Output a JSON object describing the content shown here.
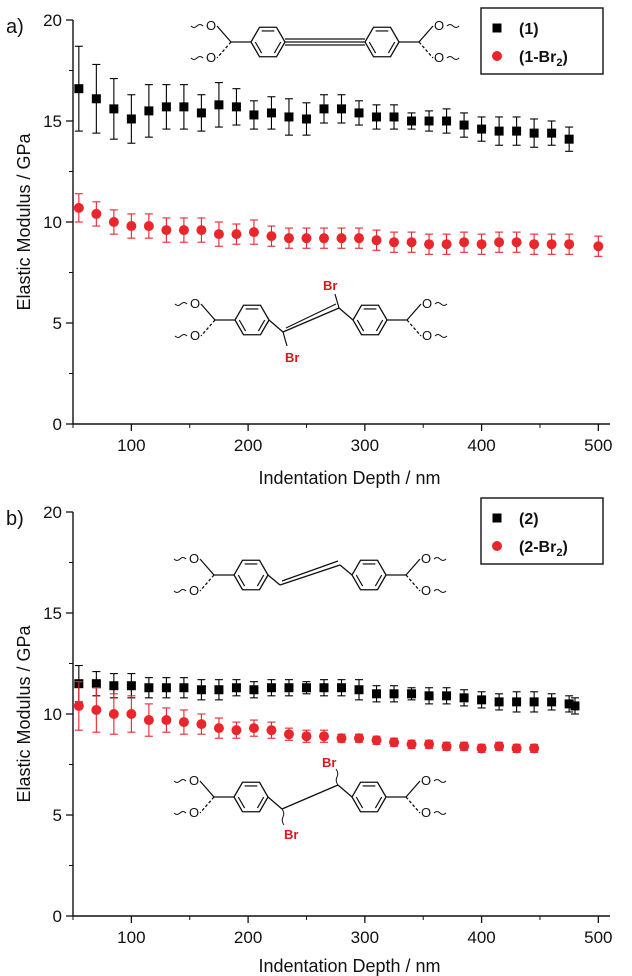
{
  "chart_data": [
    {
      "type": "scatter",
      "panel_label": "a)",
      "xlabel": "Indentation Depth / nm",
      "ylabel": "Elastic Modulus / GPa",
      "xlim": [
        50,
        510
      ],
      "ylim": [
        0,
        20
      ],
      "xticks": [
        100,
        200,
        300,
        400,
        500
      ],
      "yticks": [
        0,
        5,
        10,
        15,
        20
      ],
      "legend": {
        "placement": "top-right"
      },
      "series": [
        {
          "name": "(1)",
          "marker": "square",
          "color": "#000000",
          "x": [
            55,
            70,
            85,
            100,
            115,
            130,
            145,
            160,
            175,
            190,
            205,
            220,
            235,
            250,
            265,
            280,
            295,
            310,
            325,
            340,
            355,
            370,
            385,
            400,
            415,
            430,
            445,
            460,
            475
          ],
          "y": [
            16.6,
            16.1,
            15.6,
            15.1,
            15.5,
            15.7,
            15.7,
            15.4,
            15.8,
            15.7,
            15.3,
            15.4,
            15.2,
            15.1,
            15.6,
            15.6,
            15.4,
            15.2,
            15.2,
            15.0,
            15.0,
            15.0,
            14.8,
            14.6,
            14.5,
            14.5,
            14.4,
            14.4,
            14.1
          ],
          "err": [
            2.1,
            1.7,
            1.5,
            1.2,
            1.3,
            1.1,
            1.1,
            0.9,
            1.1,
            0.9,
            0.7,
            0.8,
            0.9,
            0.8,
            0.7,
            0.7,
            0.6,
            0.6,
            0.6,
            0.4,
            0.5,
            0.6,
            0.6,
            0.6,
            0.7,
            0.7,
            0.7,
            0.6,
            0.6
          ]
        },
        {
          "name_main": "(1-Br",
          "name_sub": "2",
          "name_end": ")",
          "marker": "circle",
          "color": "#e8262b",
          "x": [
            55,
            70,
            85,
            100,
            115,
            130,
            145,
            160,
            175,
            190,
            205,
            220,
            235,
            250,
            265,
            280,
            295,
            310,
            325,
            340,
            355,
            370,
            385,
            400,
            415,
            430,
            445,
            460,
            475,
            500
          ],
          "y": [
            10.7,
            10.4,
            10.0,
            9.8,
            9.8,
            9.6,
            9.6,
            9.6,
            9.4,
            9.4,
            9.5,
            9.3,
            9.2,
            9.2,
            9.2,
            9.2,
            9.2,
            9.1,
            9.0,
            9.0,
            8.9,
            8.9,
            9.0,
            8.9,
            9.0,
            9.0,
            8.9,
            8.9,
            8.9,
            8.8
          ],
          "err": [
            0.7,
            0.6,
            0.6,
            0.6,
            0.6,
            0.6,
            0.6,
            0.6,
            0.6,
            0.5,
            0.6,
            0.5,
            0.5,
            0.5,
            0.5,
            0.5,
            0.5,
            0.5,
            0.5,
            0.5,
            0.5,
            0.5,
            0.5,
            0.5,
            0.5,
            0.5,
            0.5,
            0.5,
            0.5,
            0.5
          ]
        }
      ],
      "molecules": {
        "top": {
          "labels": [
            "O",
            "O",
            "O",
            "O"
          ]
        },
        "bottom": {
          "labels": [
            "O",
            "O",
            "O",
            "O"
          ],
          "br": [
            "Br",
            "Br"
          ]
        }
      }
    },
    {
      "type": "scatter",
      "panel_label": "b)",
      "xlabel": "Indentation Depth / nm",
      "ylabel": "Elastic Modulus / GPa",
      "xlim": [
        50,
        510
      ],
      "ylim": [
        0,
        20
      ],
      "xticks": [
        100,
        200,
        300,
        400,
        500
      ],
      "yticks": [
        0,
        5,
        10,
        15,
        20
      ],
      "legend": {
        "placement": "top-right"
      },
      "series": [
        {
          "name": "(2)",
          "marker": "square",
          "color": "#000000",
          "x": [
            55,
            70,
            85,
            100,
            115,
            130,
            145,
            160,
            175,
            190,
            205,
            220,
            235,
            250,
            265,
            280,
            295,
            310,
            325,
            340,
            355,
            370,
            385,
            400,
            415,
            430,
            445,
            460,
            475,
            480
          ],
          "y": [
            11.5,
            11.5,
            11.4,
            11.4,
            11.3,
            11.3,
            11.3,
            11.2,
            11.2,
            11.3,
            11.2,
            11.3,
            11.3,
            11.3,
            11.3,
            11.3,
            11.2,
            11.0,
            11.0,
            11.0,
            10.9,
            10.9,
            10.8,
            10.7,
            10.6,
            10.6,
            10.6,
            10.6,
            10.5,
            10.4
          ],
          "err": [
            0.9,
            0.6,
            0.6,
            0.6,
            0.5,
            0.5,
            0.5,
            0.5,
            0.5,
            0.4,
            0.4,
            0.4,
            0.4,
            0.3,
            0.4,
            0.4,
            0.5,
            0.4,
            0.4,
            0.3,
            0.4,
            0.4,
            0.4,
            0.4,
            0.4,
            0.5,
            0.5,
            0.4,
            0.4,
            0.4
          ]
        },
        {
          "name_main": "(2-Br",
          "name_sub": "2",
          "name_end": ")",
          "marker": "circle",
          "color": "#e8262b",
          "x": [
            55,
            70,
            85,
            100,
            115,
            130,
            145,
            160,
            175,
            190,
            205,
            220,
            235,
            250,
            265,
            280,
            295,
            310,
            325,
            340,
            355,
            370,
            385,
            400,
            415,
            430,
            445
          ],
          "y": [
            10.4,
            10.2,
            10.0,
            10.0,
            9.7,
            9.7,
            9.6,
            9.5,
            9.3,
            9.2,
            9.3,
            9.2,
            9.0,
            8.9,
            8.9,
            8.8,
            8.8,
            8.7,
            8.6,
            8.5,
            8.5,
            8.4,
            8.4,
            8.3,
            8.4,
            8.3,
            8.3
          ],
          "err": [
            1.2,
            1.1,
            1.0,
            0.9,
            0.8,
            0.6,
            0.6,
            0.5,
            0.5,
            0.4,
            0.4,
            0.4,
            0.3,
            0.3,
            0.3,
            0.2,
            0.2,
            0.2,
            0.2,
            0.2,
            0.2,
            0.2,
            0.2,
            0.2,
            0.2,
            0.2,
            0.2
          ]
        }
      ],
      "molecules": {
        "top": {
          "labels": [
            "O",
            "O",
            "O",
            "O"
          ]
        },
        "bottom": {
          "labels": [
            "O",
            "O",
            "O",
            "O"
          ],
          "br": [
            "Br",
            "Br"
          ]
        }
      }
    }
  ]
}
